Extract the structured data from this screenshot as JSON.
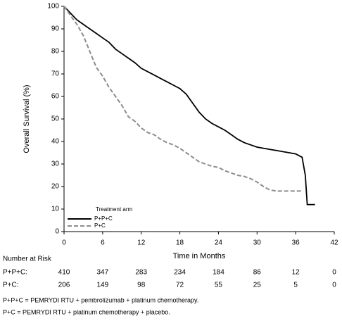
{
  "chart_data": {
    "type": "line",
    "ylabel": "Overall Survival (%)",
    "xlabel": "Time in Months",
    "xlim": [
      0,
      42
    ],
    "xticks": [
      0,
      6,
      12,
      18,
      24,
      30,
      36,
      42
    ],
    "ylim": [
      0,
      100
    ],
    "yticks": [
      0,
      10,
      20,
      30,
      40,
      50,
      60,
      70,
      80,
      90,
      100
    ],
    "legend_title": "Treatment arm",
    "legend_position": "lower left",
    "series": [
      {
        "name": "P+P+C",
        "color": "#000000",
        "dash": "solid",
        "x": [
          0,
          1,
          2,
          3,
          4,
          5,
          6,
          7,
          8,
          9,
          10,
          11,
          12,
          13,
          14,
          15,
          16,
          17,
          18,
          19,
          20,
          21,
          22,
          23,
          24,
          25,
          26,
          27,
          28,
          29,
          30,
          31,
          32,
          33,
          34,
          35,
          36,
          37,
          37.5,
          37.8,
          39
        ],
        "values": [
          100,
          97,
          94,
          92,
          90,
          88,
          86,
          84,
          81,
          79,
          77,
          75,
          72.5,
          71,
          69.5,
          68,
          66.5,
          65,
          63.5,
          61,
          57,
          53,
          50,
          48,
          46.5,
          45,
          43,
          41,
          39.5,
          38.5,
          37.5,
          37,
          36.5,
          36,
          35.5,
          35,
          34.5,
          33,
          25,
          12,
          12
        ]
      },
      {
        "name": "P+C",
        "color": "#8c8c8c",
        "dash": "dashed",
        "x": [
          0,
          1,
          2,
          3,
          4,
          5,
          6,
          7,
          8,
          9,
          10,
          11,
          12,
          13,
          14,
          15,
          16,
          17,
          18,
          19,
          20,
          21,
          22,
          23,
          24,
          25,
          26,
          27,
          28,
          29,
          30,
          31,
          32,
          33,
          34,
          35,
          36,
          37
        ],
        "values": [
          100,
          96,
          92,
          87,
          80,
          73,
          69,
          64,
          60,
          56,
          51,
          49,
          46,
          44,
          43,
          41,
          39.5,
          38.5,
          37,
          35,
          33,
          31,
          30,
          29,
          28.5,
          27,
          26,
          25,
          24.5,
          23.5,
          22,
          20,
          18.5,
          18,
          18,
          18,
          18,
          18
        ]
      }
    ]
  },
  "risk_table": {
    "title": "Number at Risk",
    "rows": [
      {
        "label": "P+P+C:",
        "values": [
          410,
          347,
          283,
          234,
          184,
          86,
          12,
          0
        ]
      },
      {
        "label": "P+C:",
        "values": [
          206,
          149,
          98,
          72,
          55,
          25,
          5,
          0
        ]
      }
    ]
  },
  "footnotes": [
    "P+P+C = PEMRYDI RTU + pembrolizumab + platinum chemotherapy.",
    "P+C = PEMRYDI RTU + platinum chemotherapy + placebo."
  ]
}
